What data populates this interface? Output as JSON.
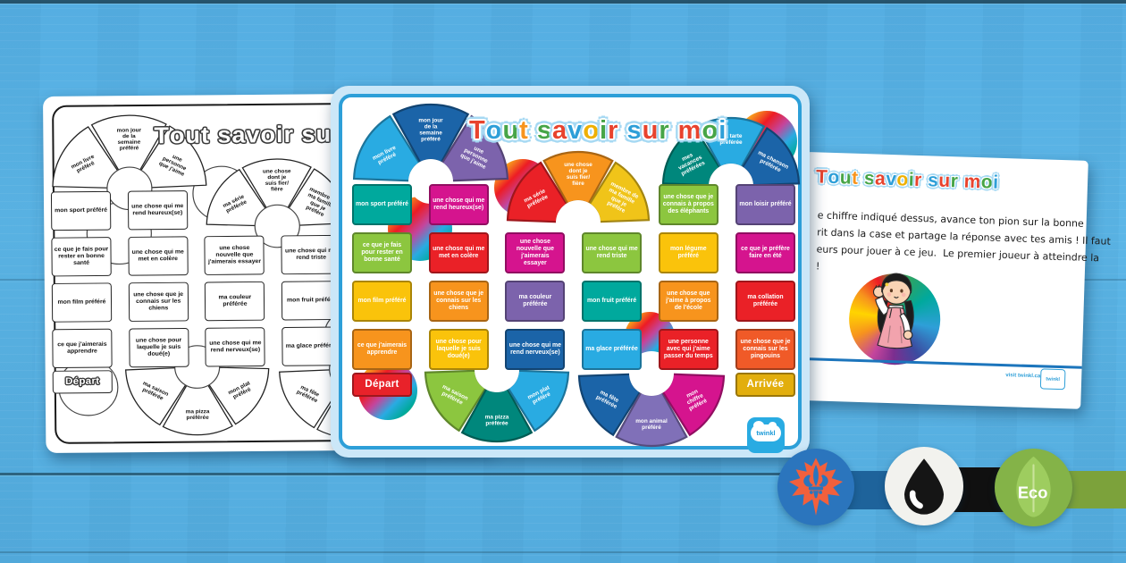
{
  "board": {
    "title": "Tout savoir sur moi",
    "title_letter_colors": [
      "#E8432D",
      "#2E9FD8",
      "#47A547",
      "#F7941D",
      "#47A547",
      "#E8432D",
      "#2E9FD8",
      "#EFB000",
      "#47A547",
      "#E8432D",
      "#2E9FD8",
      "#E8432D",
      "#47A547",
      "#E8432D",
      "#47A547",
      "#2E9FD8"
    ],
    "rainbow_stops": [
      "#F9ED32",
      "#F7941D",
      "#ED1C24",
      "#C4459C",
      "#29ABE2",
      "#00A99D",
      "#8CC63F"
    ],
    "logo_text": "twinkl",
    "cells": [
      {
        "slot": "depart",
        "label": "Départ",
        "color": "#E8222A",
        "type": "badge"
      },
      {
        "slot": "a4",
        "label": "ce que j'aimerais apprendre",
        "color": "#F7941D",
        "type": "square"
      },
      {
        "slot": "a3",
        "label": "mon film préféré",
        "color": "#FAC30B",
        "type": "square"
      },
      {
        "slot": "a2",
        "label": "ce que je fais pour rester en bonne santé",
        "color": "#8CC63F",
        "type": "square"
      },
      {
        "slot": "a1",
        "label": "mon sport préféré",
        "color": "#00A99D",
        "type": "square"
      },
      {
        "slot": "arcAB-0",
        "label": "mon livre préféré",
        "color": "#29ABE2",
        "type": "wedge"
      },
      {
        "slot": "arcAB-1",
        "label": "mon jour de la semaine préféré",
        "color": "#1B64A8",
        "type": "wedge"
      },
      {
        "slot": "arcAB-2",
        "label": "une personne que j'aime",
        "color": "#7C63AC",
        "type": "wedge"
      },
      {
        "slot": "b1",
        "label": "une chose qui me rend heureux(se)",
        "color": "#D5148E",
        "type": "square"
      },
      {
        "slot": "b2",
        "label": "une chose qui me met en colère",
        "color": "#EA2127",
        "type": "square"
      },
      {
        "slot": "b3",
        "label": "une chose que je connais sur les chiens",
        "color": "#F7941D",
        "type": "square"
      },
      {
        "slot": "b4",
        "label": "une chose pour laquelle je suis doué(e)",
        "color": "#FAC30B",
        "type": "square"
      },
      {
        "slot": "arcBC-0",
        "label": "ma saison préférée",
        "color": "#8CC63F",
        "type": "wedge"
      },
      {
        "slot": "arcBC-1",
        "label": "ma pizza préférée",
        "color": "#00877C",
        "type": "wedge"
      },
      {
        "slot": "arcBC-2",
        "label": "mon plat préféré",
        "color": "#29ABE2",
        "type": "wedge"
      },
      {
        "slot": "c4",
        "label": "une chose qui me rend nerveux(se)",
        "color": "#1B64A8",
        "type": "square"
      },
      {
        "slot": "c3",
        "label": "ma couleur préférée",
        "color": "#7C63AC",
        "type": "square"
      },
      {
        "slot": "c2",
        "label": "une chose nouvelle que j'aimerais essayer",
        "color": "#D5148E",
        "type": "square"
      },
      {
        "slot": "arcCD-0",
        "label": "ma série préférée",
        "color": "#EA2127",
        "type": "wedge"
      },
      {
        "slot": "arcCD-1",
        "label": "une chose dont je suis fier/ fière",
        "color": "#F7941D",
        "type": "wedge"
      },
      {
        "slot": "arcCD-2",
        "label": "membre de ma famille que je préfère",
        "color": "#F0C419",
        "type": "wedge"
      },
      {
        "slot": "d2",
        "label": "une chose qui me rend triste",
        "color": "#8CC63F",
        "type": "square"
      },
      {
        "slot": "d3",
        "label": "mon fruit préféré",
        "color": "#00A99D",
        "type": "square"
      },
      {
        "slot": "d4",
        "label": "ma glace préférée",
        "color": "#29ABE2",
        "type": "square"
      },
      {
        "slot": "arcDE-0",
        "label": "ma fête préférée",
        "color": "#1B64A8",
        "type": "wedge"
      },
      {
        "slot": "arcDE-1",
        "label": "mon animal préféré",
        "color": "#8070B8",
        "type": "wedge"
      },
      {
        "slot": "arcDE-2",
        "label": "mon chiffre préféré",
        "color": "#D5148E",
        "type": "wedge"
      },
      {
        "slot": "e4",
        "label": "une personne avec qui j'aime passer du temps",
        "color": "#EA2127",
        "type": "square"
      },
      {
        "slot": "e3",
        "label": "une chose que j'aime à propos de l'école",
        "color": "#F7941D",
        "type": "square"
      },
      {
        "slot": "e2",
        "label": "mon légume préféré",
        "color": "#FAC30B",
        "type": "square"
      },
      {
        "slot": "e1",
        "label": "une chose que je connais à propos des éléphants",
        "color": "#8CC63F",
        "type": "square"
      },
      {
        "slot": "arcEF-0",
        "label": "mes vacances préférées",
        "color": "#00877C",
        "type": "wedge"
      },
      {
        "slot": "arcEF-1",
        "label": "ma tarte préférée",
        "color": "#29ABE2",
        "type": "wedge"
      },
      {
        "slot": "arcEF-2",
        "label": "ma chanson préférée",
        "color": "#1B64A8",
        "type": "wedge"
      },
      {
        "slot": "f1",
        "label": "mon loisir préféré",
        "color": "#7C63AC",
        "type": "square"
      },
      {
        "slot": "f2",
        "label": "ce que je préfère faire en été",
        "color": "#D5148E",
        "type": "square"
      },
      {
        "slot": "f3",
        "label": "ma collation préférée",
        "color": "#EA2127",
        "type": "square"
      },
      {
        "slot": "f4",
        "label": "une chose que je connais sur les pingouins",
        "color": "#F05A28",
        "type": "square"
      },
      {
        "slot": "arrivee",
        "label": "Arrivée",
        "color": "#E2AE0D",
        "type": "badge"
      }
    ]
  },
  "color_page": {
    "border_color": "#2D9FD8"
  },
  "instructions_page": {
    "title": "Tout savoir sur moi",
    "lines": [
      "e chiffre indiqué dessus, avance ton pion sur la bonne",
      "rit dans la case et partage la réponse avec tes amis ! Il faut",
      "eurs pour jouer à ce jeu.  Le premier joueur à atteindre la",
      "!"
    ],
    "footer_link": "visit twinkl.ca",
    "logo_text": "twinkl"
  },
  "badges": {
    "canada": {
      "icon": "maple-leaf-fleur-de-lis-icon",
      "circle": "#2B75BD",
      "leaf": "#F2603C"
    },
    "ink": {
      "icon": "ink-droplet-icon",
      "circle": "#F2F2EE",
      "drop": "#151515"
    },
    "eco": {
      "icon": "eco-leaf-icon",
      "circle": "#84B348",
      "leaf": "#9ECD5F",
      "stem": "#C9E39B",
      "label": "Eco"
    },
    "bar_colors": [
      "#1E639B",
      "#101010",
      "#7CA23B"
    ]
  }
}
